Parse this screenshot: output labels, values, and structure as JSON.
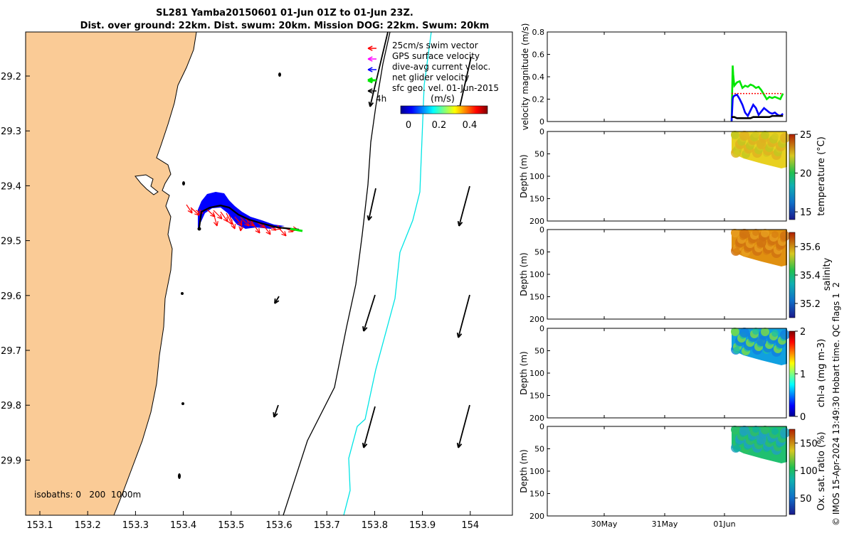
{
  "title": {
    "line1": "SL281 Yamba20150601 01-Jun 01Z to 01-Jun 23Z.",
    "line2": "Dist. over ground: 22km. Dist. swum: 20km. Mission DOG: 22km. Swum: 20km"
  },
  "colors": {
    "land": "#FACB96",
    "swim": "#FF0000",
    "gps": "#FF00FF",
    "dive_avg": "#0000FF",
    "net": "#00E600",
    "isobath_200": "#000000",
    "isobath_1000": "#00E5E5",
    "dashed": "#FF0000"
  },
  "map": {
    "legend": [
      {
        "label": "25cm/s swim vector",
        "color": "#FF0000"
      },
      {
        "label": "GPS surface velocity",
        "color": "#FF00FF"
      },
      {
        "label": "dive-avg current veloc.",
        "color": "#0000FF"
      },
      {
        "label": "net glider velocity",
        "color": "#00E600"
      },
      {
        "label": "sfc geo. vel. 01-Jun-2015",
        "color": "#000000"
      }
    ],
    "legend_extra": "4h",
    "colorbar_title": "(m/s)",
    "colorbar_ticks": [
      "0",
      "0.2",
      "0.4"
    ],
    "isobaths_label": "isobaths: 0   200  1000m",
    "x_ticks": [
      "153.1",
      "153.2",
      "153.3",
      "153.4",
      "153.5",
      "153.6",
      "153.7",
      "153.8",
      "153.9",
      "154"
    ],
    "y_ticks": [
      "29.2",
      "29.3",
      "29.4",
      "29.5",
      "29.6",
      "29.7",
      "29.8",
      "29.9"
    ]
  },
  "right_x_ticks": [
    "30May",
    "31May",
    "01Jun"
  ],
  "chart_data": [
    {
      "type": "line",
      "ylabel": "velocity magnitude (m/s)",
      "ylim": [
        0,
        0.8
      ],
      "y_ticks": [
        "0",
        "0.2",
        "0.4",
        "0.6",
        "0.8"
      ],
      "x": [
        0.0,
        0.02,
        0.03,
        0.05,
        0.1,
        0.15,
        0.2,
        0.25,
        0.3,
        0.35,
        0.4,
        0.45,
        0.5,
        0.55,
        0.6,
        0.65,
        0.7,
        0.75,
        0.8,
        0.85,
        0.9,
        0.95
      ],
      "series": [
        {
          "color": "#00E600",
          "values": [
            0.0,
            0.5,
            0.42,
            0.32,
            0.35,
            0.36,
            0.3,
            0.32,
            0.31,
            0.33,
            0.32,
            0.3,
            0.31,
            0.28,
            0.24,
            0.2,
            0.22,
            0.21,
            0.22,
            0.21,
            0.2,
            0.25
          ]
        },
        {
          "color": "#0000FF",
          "values": [
            0.0,
            0.2,
            0.22,
            0.23,
            0.24,
            0.2,
            0.15,
            0.08,
            0.05,
            0.1,
            0.15,
            0.12,
            0.06,
            0.09,
            0.12,
            0.1,
            0.08,
            0.07,
            0.08,
            0.06,
            0.05,
            0.07
          ]
        },
        {
          "color": "#000000",
          "values": [
            0.04,
            0.04,
            0.04,
            0.04,
            0.03,
            0.03,
            0.03,
            0.03,
            0.03,
            0.03,
            0.04,
            0.04,
            0.04,
            0.04,
            0.04,
            0.04,
            0.04,
            0.05,
            0.05,
            0.05,
            0.05,
            0.05
          ]
        },
        {
          "color": "#FF0000",
          "dashed": true,
          "values": [
            0.25,
            0.25,
            0.25,
            0.25,
            0.25,
            0.25,
            0.25,
            0.25,
            0.25,
            0.25,
            0.25,
            0.25,
            0.25,
            0.25,
            0.25,
            0.25,
            0.25,
            0.25,
            0.25,
            0.25,
            0.25,
            0.25
          ]
        }
      ]
    },
    {
      "type": "heatmap",
      "ylabel": "Depth (m)",
      "ylim": [
        0,
        200
      ],
      "y_ticks": [
        "0",
        "50",
        "100",
        "150",
        "200"
      ],
      "colorbar_label": "temperature (°C)",
      "cbar_ticks": [
        "15",
        "20",
        "25"
      ],
      "cbar_range": [
        14,
        25
      ],
      "typical_value": 23.8
    },
    {
      "type": "heatmap",
      "ylabel": "Depth (m)",
      "ylim": [
        0,
        200
      ],
      "y_ticks": [
        "0",
        "50",
        "100",
        "150",
        "200"
      ],
      "colorbar_label": "salinity",
      "cbar_ticks": [
        "35.2",
        "35.4",
        "35.6"
      ],
      "cbar_range": [
        35.1,
        35.7
      ],
      "typical_value": 35.62
    },
    {
      "type": "heatmap",
      "ylabel": "Depth (m)",
      "ylim": [
        0,
        200
      ],
      "y_ticks": [
        "0",
        "50",
        "100",
        "150",
        "200"
      ],
      "colorbar_label": "chl-a (mg m-3)",
      "cbar_ticks": [
        "0",
        "1",
        "2"
      ],
      "cbar_range": [
        0,
        2
      ],
      "typical_value": 0.4
    },
    {
      "type": "heatmap",
      "ylabel": "Depth (m)",
      "ylim": [
        0,
        200
      ],
      "y_ticks": [
        "0",
        "50",
        "100",
        "150",
        "200"
      ],
      "colorbar_label": "Ox. sat. ratio (%)",
      "cbar_ticks": [
        "50",
        "100",
        "150"
      ],
      "cbar_range": [
        20,
        175
      ],
      "typical_value": 120
    }
  ],
  "credit": "© IMOS 15-Apr-2024 13:49:30 Hobart time. QC flags 1  2"
}
